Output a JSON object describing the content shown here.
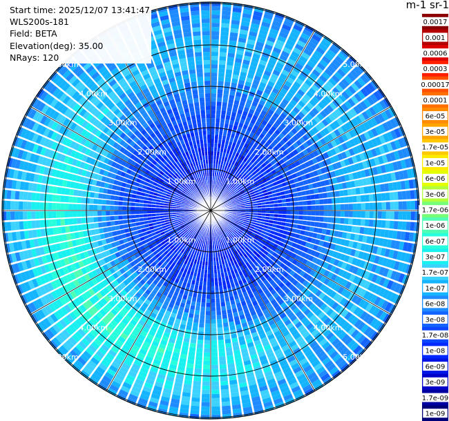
{
  "header": {
    "start_time": "Start time: 2025/12/07 13:41:47",
    "instrument": "WLS200s-181",
    "field": "Field: BETA",
    "elevation": "Elevation(deg): 35.00",
    "nrays": "NRays: 120"
  },
  "colorbar": {
    "title": "m-1 sr-1",
    "labels": [
      "0.0017",
      "0.001",
      "0.0006",
      "0.0003",
      "0.00017",
      "0.0001",
      "6e-05",
      "3e-05",
      "1.7e-05",
      "1e-05",
      "6e-06",
      "3e-06",
      "1.7e-06",
      "1e-06",
      "6e-07",
      "3e-07",
      "1.7e-07",
      "1e-07",
      "6e-08",
      "3e-08",
      "1.7e-08",
      "1e-08",
      "6e-09",
      "3e-09",
      "1.7e-09",
      "1e-09"
    ],
    "colors": [
      "#8b0000",
      "#b40000",
      "#dc0000",
      "#ff1e00",
      "#ff5000",
      "#ff6e00",
      "#ff8c00",
      "#ffa500",
      "#ffc800",
      "#ffeb00",
      "#e6ff00",
      "#b4ff3c",
      "#78ff78",
      "#50ffb4",
      "#28ffdc",
      "#19f0f0",
      "#3cd2ff",
      "#14b4ff",
      "#1e8cff",
      "#1464ff",
      "#0a46ff",
      "#0028ff",
      "#0014e6",
      "#0000c8",
      "#0000a0",
      "#000078"
    ]
  },
  "chart_data": {
    "type": "heatmap",
    "projection": "polar-ppi",
    "field": "BETA",
    "units": "m-1 sr-1",
    "scale": "log",
    "nrays": 120,
    "elevation_deg": 35.0,
    "range_rings_km": [
      1,
      2,
      3,
      4,
      5
    ],
    "ring_labels": [
      "1.00km",
      "2.00km",
      "3.00km",
      "4.00km",
      "5.00km"
    ],
    "max_range_km": 6.8,
    "grid": true,
    "approx_profile": [
      {
        "range_km": 0.5,
        "beta": 1e-08
      },
      {
        "range_km": 1.5,
        "beta": 1.5e-08
      },
      {
        "range_km": 2.5,
        "beta": 4e-08
      },
      {
        "range_km": 3.5,
        "beta": 1.5e-07
      },
      {
        "range_km": 4.5,
        "beta": 1.2e-07
      },
      {
        "range_km": 5.5,
        "beta": 4e-08
      },
      {
        "range_km": 6.5,
        "beta": 2e-08
      }
    ],
    "notes_sector": "Enhanced backscatter (up to ~1.7e-06) on the west/south-west side between 2.5 and 4.5 km"
  }
}
